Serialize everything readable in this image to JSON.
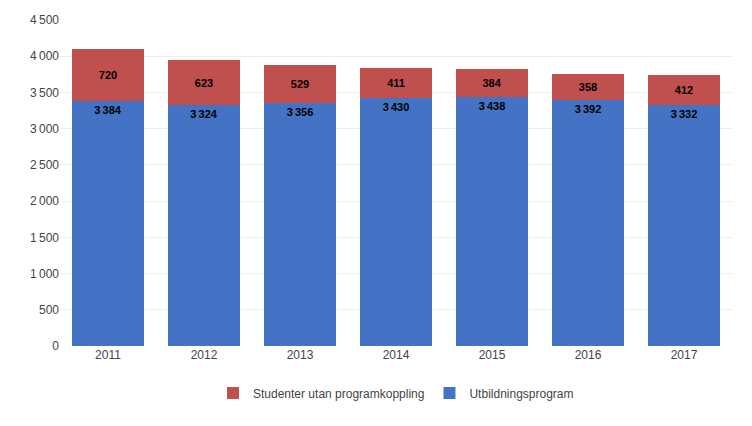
{
  "chart_data": {
    "type": "bar",
    "stacked": true,
    "categories": [
      "2011",
      "2012",
      "2013",
      "2014",
      "2015",
      "2016",
      "2017"
    ],
    "series": [
      {
        "name": "Utbildningsprogram",
        "color": "#4472C4",
        "values": [
          3384,
          3324,
          3356,
          3430,
          3438,
          3392,
          3332
        ],
        "value_labels": [
          "3 384",
          "3 324",
          "3 356",
          "3 430",
          "3 438",
          "3 392",
          "3 332"
        ]
      },
      {
        "name": "Studenter utan programkoppling",
        "color": "#C0504D",
        "values": [
          720,
          623,
          529,
          411,
          384,
          358,
          412
        ]
      }
    ],
    "ylim": [
      0,
      4500
    ],
    "yticks": [
      0,
      500,
      {
        "value": 1000,
        "label": "1 000"
      },
      {
        "value": 1500,
        "label": "1 500"
      },
      {
        "value": 2000,
        "label": "2 000"
      },
      {
        "value": 2500,
        "label": "2 500"
      },
      {
        "value": 3000,
        "label": "3 000"
      },
      {
        "value": 3500,
        "label": "3 500"
      },
      {
        "value": 4000,
        "label": "4 000"
      },
      {
        "value": 4500,
        "label": "4 500"
      }
    ],
    "grid": true,
    "legend": "bottom",
    "data_labels": true
  }
}
